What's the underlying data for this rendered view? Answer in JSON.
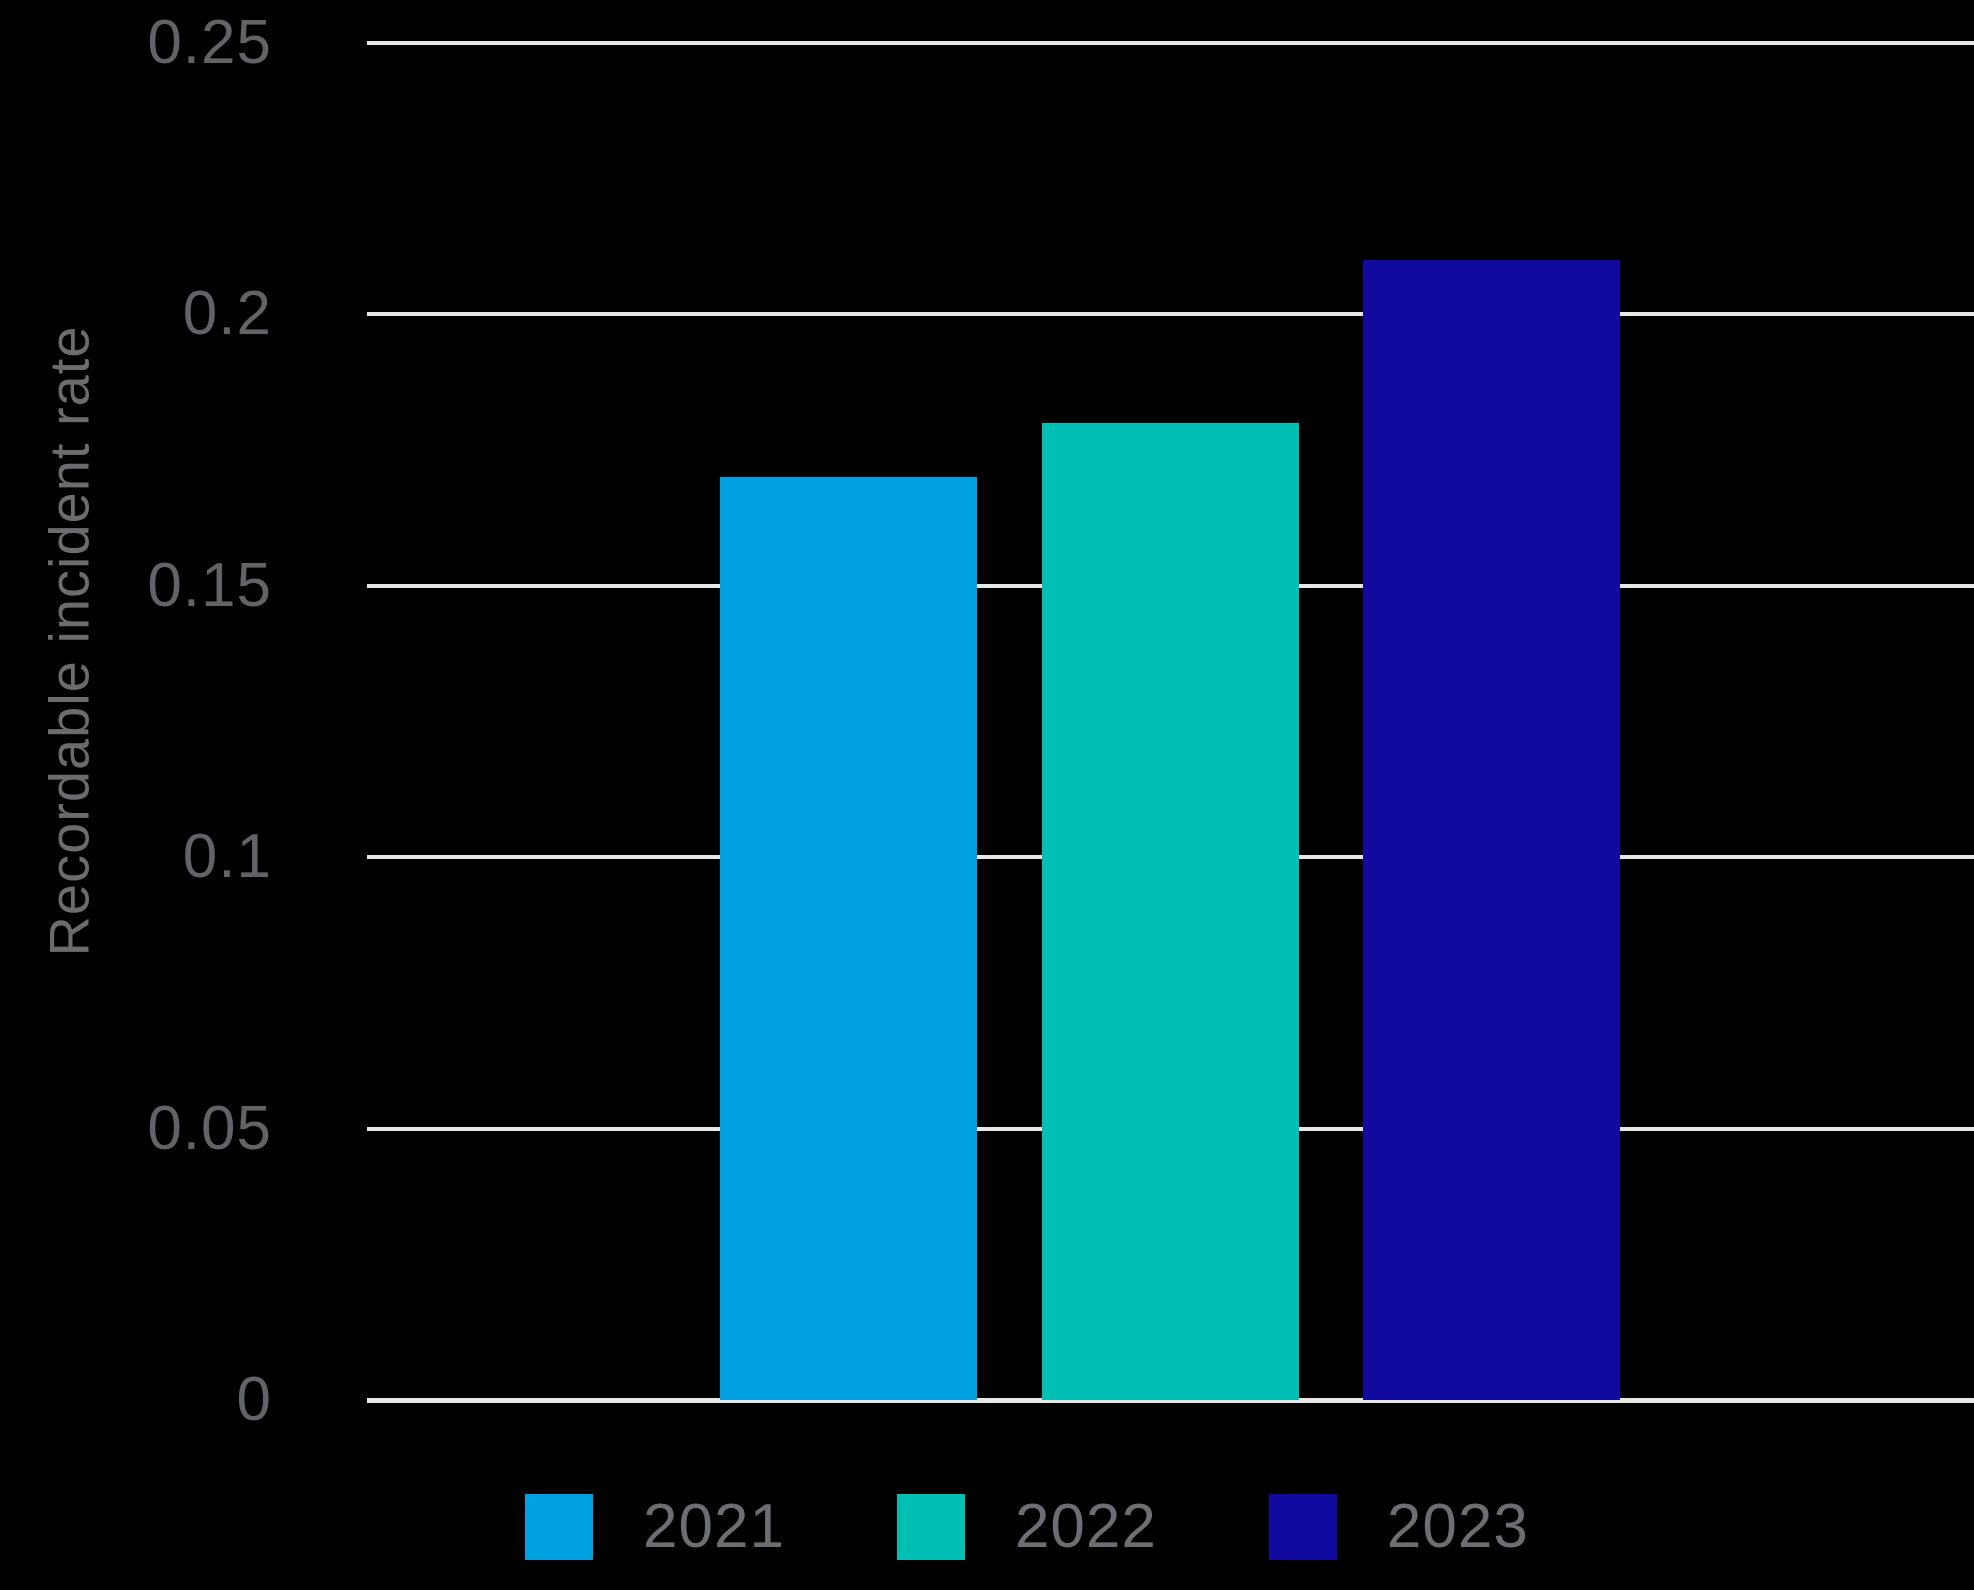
{
  "chart_data": {
    "type": "bar",
    "title": "",
    "xlabel": "",
    "ylabel": "Recordable incident rate",
    "categories": [
      "2021",
      "2022",
      "2023"
    ],
    "values": [
      0.17,
      0.18,
      0.21
    ],
    "bar_colors": [
      "#00a1e0",
      "#00bfb3",
      "#120aa0"
    ],
    "ylim": [
      0,
      0.25
    ],
    "yticks": [
      0,
      0.05,
      0.1,
      0.15,
      0.2,
      0.25
    ],
    "ytick_labels": [
      "0",
      "0.05",
      "0.1",
      "0.15",
      "0.2",
      "0.25"
    ],
    "grid": true,
    "legend": [
      "2021",
      "2022",
      "2023"
    ],
    "legend_position": "bottom",
    "colors": {
      "background": "#000000",
      "gridline": "#e7e7e6",
      "axis_line": "#e7e7e6",
      "tick_label": "#616366",
      "axis_title": "#6a6c6e",
      "legend_label": "#6d6e71"
    }
  }
}
